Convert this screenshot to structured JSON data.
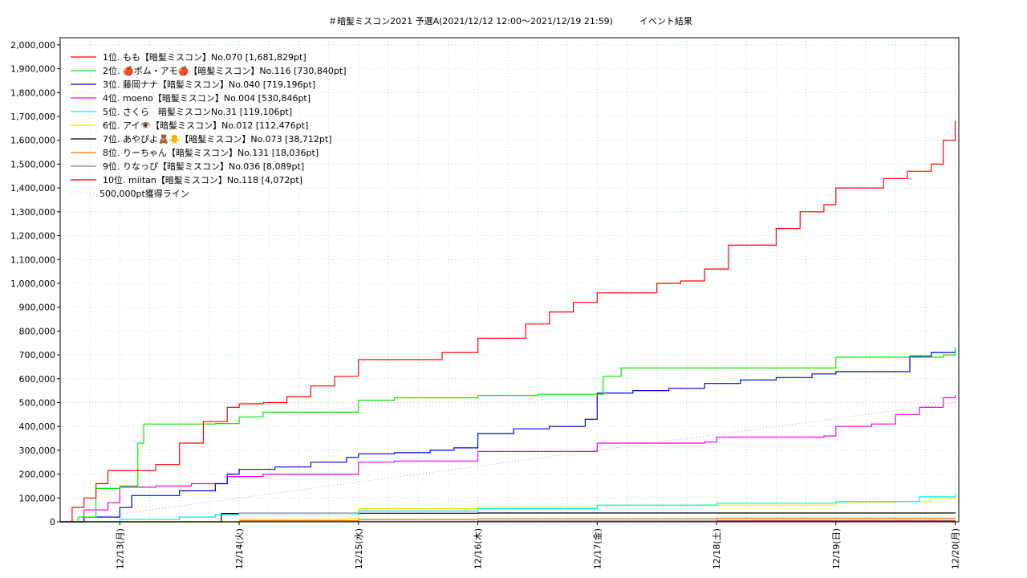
{
  "chart_data": {
    "type": "line",
    "title": "＃暗髪ミスコン2021 予選A(2021/12/12 12:00～2021/12/19 21:59)　　　イベント結果",
    "xlabel": "",
    "ylabel": "",
    "x_ticks": [
      "12/13(月)",
      "12/14(火)",
      "12/15(水)",
      "12/16(木)",
      "12/17(金)",
      "12/18(土)",
      "12/19(日)",
      "12/20(月)"
    ],
    "x_range_days": [
      -0.5,
      7.03
    ],
    "ylim": [
      0,
      2030000
    ],
    "y_ticks": [
      "0",
      "100,000",
      "200,000",
      "300,000",
      "400,000",
      "500,000",
      "600,000",
      "700,000",
      "800,000",
      "900,000",
      "1,000,000",
      "1,100,000",
      "1,200,000",
      "1,300,000",
      "1,400,000",
      "1,500,000",
      "1,600,000",
      "1,700,000",
      "1,800,000",
      "1,900,000",
      "2,000,000"
    ],
    "y_tick_values": [
      0,
      100000,
      200000,
      300000,
      400000,
      500000,
      600000,
      700000,
      800000,
      900000,
      1000000,
      1100000,
      1200000,
      1300000,
      1400000,
      1500000,
      1600000,
      1700000,
      1800000,
      1900000,
      2000000
    ],
    "grid": true,
    "legend": "top-left",
    "series": [
      {
        "name": "1位. もも【暗髪ミスコン】No.070 [1,681,829pt]",
        "color": "#ff0000",
        "x": [
          -0.5,
          -0.4,
          -0.3,
          -0.2,
          -0.1,
          0,
          0.1,
          0.3,
          0.5,
          0.7,
          0.9,
          1.0,
          1.2,
          1.4,
          1.6,
          1.8,
          2.0,
          2.3,
          2.5,
          2.7,
          3.0,
          3.2,
          3.4,
          3.6,
          3.8,
          4.0,
          4.3,
          4.5,
          4.7,
          4.9,
          5.1,
          5.3,
          5.5,
          5.7,
          5.9,
          6.0,
          6.2,
          6.4,
          6.6,
          6.8,
          6.9,
          7.0
        ],
        "y": [
          0,
          60000,
          100000,
          160000,
          215000,
          215000,
          215000,
          240000,
          330000,
          420000,
          480000,
          495000,
          500000,
          525000,
          570000,
          610000,
          680000,
          680000,
          680000,
          710000,
          770000,
          770000,
          830000,
          880000,
          920000,
          960000,
          960000,
          1000000,
          1010000,
          1060000,
          1160000,
          1160000,
          1230000,
          1300000,
          1330000,
          1400000,
          1400000,
          1440000,
          1470000,
          1500000,
          1600000,
          1682000
        ]
      },
      {
        "name": "2位. 🍎ポム・アモ🍎【暗髪ミスコン】No.116 [730,840pt]",
        "color": "#00ee00",
        "x": [
          -0.5,
          -0.35,
          -0.2,
          0,
          0.1,
          0.15,
          0.2,
          0.5,
          0.8,
          1.0,
          1.2,
          1.5,
          1.9,
          2.0,
          2.3,
          2.6,
          3.0,
          3.5,
          4.0,
          4.05,
          4.2,
          4.5,
          5.0,
          6.0,
          6.5,
          6.9,
          7.0
        ],
        "y": [
          0,
          20000,
          140000,
          150000,
          150000,
          330000,
          410000,
          410000,
          412000,
          440000,
          460000,
          460000,
          460000,
          510000,
          520000,
          520000,
          530000,
          535000,
          535000,
          610000,
          645000,
          645000,
          645000,
          690000,
          690000,
          700000,
          731000
        ]
      },
      {
        "name": "3位. 藤岡ナナ【暗髪ミスコン】No.040 [719,196pt]",
        "color": "#0000dd",
        "x": [
          -0.5,
          -0.3,
          0,
          0.1,
          0.3,
          0.5,
          0.8,
          0.9,
          1.0,
          1.3,
          1.6,
          1.9,
          2.0,
          2.3,
          2.6,
          2.8,
          3.0,
          3.3,
          3.6,
          3.9,
          4.0,
          4.3,
          4.6,
          4.9,
          5.2,
          5.5,
          5.8,
          6.0,
          6.3,
          6.6,
          6.62,
          6.8,
          7.0
        ],
        "y": [
          0,
          20000,
          60000,
          110000,
          110000,
          130000,
          160000,
          200000,
          220000,
          230000,
          250000,
          270000,
          285000,
          290000,
          300000,
          310000,
          370000,
          390000,
          400000,
          430000,
          540000,
          550000,
          560000,
          580000,
          595000,
          605000,
          620000,
          630000,
          630000,
          630000,
          695000,
          710000,
          719000
        ]
      },
      {
        "name": "4位. moeno【暗髪ミスコン】No.004 [530,846pt]",
        "color": "#ee00ee",
        "x": [
          -0.5,
          -0.3,
          -0.1,
          0,
          0.3,
          0.6,
          0.9,
          1.2,
          1.5,
          1.9,
          2.0,
          2.3,
          2.6,
          2.9,
          3.0,
          3.3,
          3.6,
          3.9,
          4.0,
          4.3,
          4.6,
          4.9,
          5.0,
          5.3,
          5.6,
          5.9,
          6.0,
          6.3,
          6.5,
          6.7,
          6.9,
          7.0
        ],
        "y": [
          0,
          50000,
          80000,
          145000,
          150000,
          160000,
          190000,
          200000,
          200000,
          200000,
          250000,
          255000,
          255000,
          255000,
          295000,
          295000,
          295000,
          295000,
          330000,
          330000,
          330000,
          335000,
          355000,
          355000,
          355000,
          360000,
          400000,
          410000,
          450000,
          480000,
          520000,
          531000
        ]
      },
      {
        "name": "5位. さくら　暗髪ミスコンNo.31 [119,106pt]",
        "color": "#00eeee",
        "x": [
          -0.5,
          0,
          0.5,
          0.8,
          1.0,
          2.0,
          3.0,
          4.0,
          5.0,
          6.0,
          6.5,
          6.7,
          7.0
        ],
        "y": [
          0,
          10000,
          20000,
          30000,
          35000,
          45000,
          55000,
          70000,
          78000,
          85000,
          85000,
          105000,
          119000
        ]
      },
      {
        "name": "6位. アイ👁️【暗髪ミスコン】No.012 [112,476pt]",
        "color": "#eeee00",
        "x": [
          -0.5,
          0,
          1.0,
          1.9,
          2.0,
          3.0,
          4.0,
          5.0,
          6.0,
          6.5,
          6.8,
          7.0
        ],
        "y": [
          0,
          0,
          10000,
          15000,
          55000,
          60000,
          68000,
          70000,
          82000,
          85000,
          100000,
          112000
        ]
      },
      {
        "name": "7位. あやぴよ🧸🐥【暗髪ミスコン】No.073 [38,712pt]",
        "color": "#000000",
        "x": [
          -0.5,
          0.8,
          0.85,
          1.0,
          3.0,
          7.0
        ],
        "y": [
          0,
          0,
          35000,
          36000,
          37000,
          38700
        ]
      },
      {
        "name": "8位. りーちゃん【暗髪ミスコン】No.131 [18,036pt]",
        "color": "#ee7700",
        "x": [
          -0.5,
          1.0,
          2.0,
          3.0,
          5.0,
          7.0
        ],
        "y": [
          0,
          5000,
          10000,
          12000,
          15000,
          18000
        ]
      },
      {
        "name": "9位. りなっぴ【暗髪ミスコン】No.036 [8,089pt]",
        "color": "#888888",
        "x": [
          -0.5,
          1.0,
          3.0,
          5.0,
          7.0
        ],
        "y": [
          0,
          2000,
          4000,
          6000,
          8000
        ]
      },
      {
        "name": "10位. miitan【暗髪ミスコン】No.118 [4,072pt]",
        "color": "#cc0000",
        "x": [
          -0.5,
          1.0,
          3.0,
          5.0,
          7.0
        ],
        "y": [
          0,
          1000,
          2000,
          3000,
          4000
        ]
      }
    ],
    "reference_line": {
      "name": "500,000pt獲得ライン",
      "color": "#ff9999",
      "y": 500000
    },
    "diagonal_line": {
      "color": "#cc9999",
      "x": [
        -0.5,
        7.0
      ],
      "y": [
        0,
        500000
      ]
    }
  }
}
